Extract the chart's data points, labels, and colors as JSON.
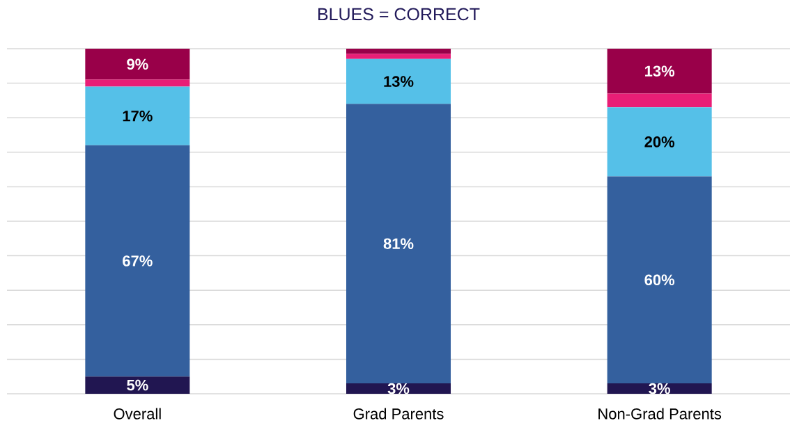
{
  "chart_data": {
    "type": "bar",
    "stacked": true,
    "title": "BLUES = CORRECT",
    "categories": [
      "Overall",
      "Grad Parents",
      "Non-Grad Parents"
    ],
    "series": [
      {
        "color": "#211651",
        "values": [
          5,
          3,
          3
        ],
        "value_labels": [
          "5%",
          "3%",
          "3%"
        ]
      },
      {
        "color": "#34609e",
        "values": [
          67,
          81,
          60
        ],
        "value_labels": [
          "67%",
          "81%",
          "60%"
        ]
      },
      {
        "color": "#55c0e8",
        "values": [
          17,
          13,
          20
        ],
        "value_labels": [
          "17%",
          "13%",
          "20%"
        ]
      },
      {
        "color": "#e91e76",
        "values": [
          2,
          1.5,
          4
        ]
      },
      {
        "color": "#990049",
        "values": [
          9,
          1.5,
          13
        ],
        "value_labels": [
          "9%",
          null,
          "13%"
        ]
      }
    ],
    "ylim": [
      0,
      100
    ],
    "yticks": [
      {
        "value": 0,
        "label": null
      },
      {
        "value": 10,
        "label": null
      },
      {
        "value": 20,
        "label": null
      },
      {
        "value": 30,
        "label": null
      },
      {
        "value": 40,
        "label": null
      },
      {
        "value": 50,
        "label": null
      },
      {
        "value": 60,
        "label": null
      },
      {
        "value": 70,
        "label": null
      },
      {
        "value": 80,
        "label": null
      },
      {
        "value": 90,
        "label": null
      },
      {
        "value": 100,
        "label": null
      }
    ],
    "grid": "y",
    "tick_labels": "x"
  }
}
